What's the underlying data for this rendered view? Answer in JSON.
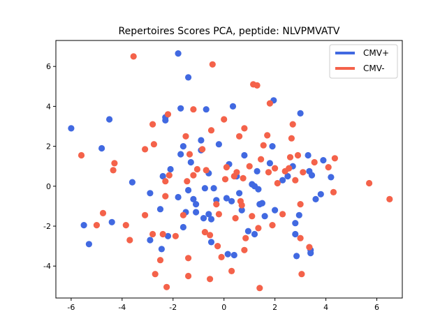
{
  "chart_data": {
    "type": "scatter",
    "title": "Repertoires Scores PCA, peptide: NLVPMVATV",
    "xlabel": "",
    "ylabel": "",
    "xlim": [
      -6.6,
      7.0
    ],
    "ylim": [
      -5.6,
      7.3
    ],
    "xticks": [
      -6,
      -4,
      -2,
      0,
      2,
      4,
      6
    ],
    "yticks": [
      -4,
      -2,
      0,
      2,
      4,
      6
    ],
    "grid": false,
    "legend": "top-right",
    "series": [
      {
        "name": "CMV+",
        "color": "#4169e1",
        "points": [
          [
            -6.0,
            2.9
          ],
          [
            -5.5,
            -1.95
          ],
          [
            -5.3,
            -2.9
          ],
          [
            -4.8,
            1.9
          ],
          [
            -4.5,
            3.35
          ],
          [
            -4.4,
            -1.8
          ],
          [
            -3.6,
            0.2
          ],
          [
            -2.9,
            -2.7
          ],
          [
            -2.9,
            -0.35
          ],
          [
            -2.5,
            -1.15
          ],
          [
            -2.45,
            -3.15
          ],
          [
            -2.4,
            0.5
          ],
          [
            -2.3,
            3.3
          ],
          [
            -2.3,
            3.45
          ],
          [
            -2.2,
            -2.5
          ],
          [
            -2.1,
            0.85
          ],
          [
            -1.8,
            -0.55
          ],
          [
            -1.8,
            6.65
          ],
          [
            -1.7,
            3.9
          ],
          [
            -1.7,
            1.6
          ],
          [
            -1.6,
            2.0
          ],
          [
            -1.6,
            -2.05
          ],
          [
            -1.5,
            -1.3
          ],
          [
            -1.4,
            -0.2
          ],
          [
            -1.4,
            5.45
          ],
          [
            -1.3,
            1.2
          ],
          [
            -1.2,
            -0.65
          ],
          [
            -1.1,
            -0.9
          ],
          [
            -1.1,
            -1.3
          ],
          [
            -0.9,
            2.3
          ],
          [
            -0.9,
            1.8
          ],
          [
            -0.8,
            -1.6
          ],
          [
            -0.75,
            -0.1
          ],
          [
            -0.7,
            3.85
          ],
          [
            -0.6,
            0.65
          ],
          [
            -0.6,
            -1.4
          ],
          [
            -0.5,
            -1.65
          ],
          [
            -0.5,
            -2.8
          ],
          [
            -0.4,
            -0.1
          ],
          [
            -0.3,
            -0.7
          ],
          [
            -0.2,
            2.1
          ],
          [
            0.1,
            -0.6
          ],
          [
            0.15,
            -3.4
          ],
          [
            0.2,
            1.1
          ],
          [
            0.3,
            -0.75
          ],
          [
            0.35,
            4.0
          ],
          [
            0.4,
            -3.45
          ],
          [
            0.5,
            0.5
          ],
          [
            0.6,
            -0.35
          ],
          [
            0.7,
            -1.2
          ],
          [
            0.8,
            1.55
          ],
          [
            0.95,
            -2.25
          ],
          [
            1.1,
            0.1
          ],
          [
            1.2,
            0.0
          ],
          [
            1.2,
            -2.4
          ],
          [
            1.3,
            0.75
          ],
          [
            1.35,
            -0.15
          ],
          [
            1.4,
            -0.9
          ],
          [
            1.5,
            -0.85
          ],
          [
            1.6,
            -1.5
          ],
          [
            1.8,
            1.15
          ],
          [
            1.9,
            2.0
          ],
          [
            1.95,
            4.3
          ],
          [
            2.0,
            -1.2
          ],
          [
            2.3,
            0.3
          ],
          [
            2.5,
            0.5
          ],
          [
            2.7,
            1.0
          ],
          [
            2.8,
            -2.4
          ],
          [
            2.8,
            -1.85
          ],
          [
            2.85,
            -3.5
          ],
          [
            2.95,
            -1.45
          ],
          [
            3.0,
            3.65
          ],
          [
            3.3,
            1.55
          ],
          [
            3.35,
            0.75
          ],
          [
            3.4,
            -3.2
          ],
          [
            3.4,
            -3.35
          ],
          [
            3.45,
            0.55
          ],
          [
            3.6,
            -0.65
          ],
          [
            3.8,
            -0.4
          ],
          [
            3.9,
            1.3
          ],
          [
            4.2,
            0.45
          ]
        ]
      },
      {
        "name": "CMV-",
        "color": "#f4624a",
        "points": [
          [
            -5.6,
            1.55
          ],
          [
            -5.0,
            -1.95
          ],
          [
            -4.75,
            -1.35
          ],
          [
            -4.35,
            0.8
          ],
          [
            -4.3,
            1.15
          ],
          [
            -3.85,
            -1.95
          ],
          [
            -3.7,
            -2.7
          ],
          [
            -3.55,
            6.5
          ],
          [
            -3.1,
            1.85
          ],
          [
            -3.1,
            -1.45
          ],
          [
            -2.8,
            -2.4
          ],
          [
            -2.8,
            3.1
          ],
          [
            -2.75,
            2.1
          ],
          [
            -2.7,
            -4.4
          ],
          [
            -2.5,
            -3.7
          ],
          [
            -2.4,
            -2.4
          ],
          [
            -2.3,
            -0.5
          ],
          [
            -2.3,
            0.25
          ],
          [
            -2.25,
            -5.05
          ],
          [
            -2.2,
            3.6
          ],
          [
            -2.15,
            0.55
          ],
          [
            -1.9,
            -2.5
          ],
          [
            -1.6,
            -1.45
          ],
          [
            -1.5,
            2.5
          ],
          [
            -1.45,
            0.25
          ],
          [
            -1.4,
            -3.6
          ],
          [
            -1.4,
            -4.5
          ],
          [
            -1.35,
            1.6
          ],
          [
            -1.2,
            0.55
          ],
          [
            -1.2,
            3.85
          ],
          [
            -1.05,
            0.85
          ],
          [
            -0.85,
            1.85
          ],
          [
            -0.75,
            -2.3
          ],
          [
            -0.7,
            0.8
          ],
          [
            -0.55,
            -2.45
          ],
          [
            -0.55,
            -4.65
          ],
          [
            -0.5,
            2.8
          ],
          [
            -0.45,
            6.1
          ],
          [
            -0.3,
            -0.9
          ],
          [
            -0.25,
            -3.0
          ],
          [
            -0.2,
            -1.4
          ],
          [
            -0.1,
            -3.55
          ],
          [
            0.0,
            3.35
          ],
          [
            0.05,
            0.35
          ],
          [
            0.1,
            0.95
          ],
          [
            0.3,
            -4.25
          ],
          [
            0.4,
            0.5
          ],
          [
            0.45,
            -1.6
          ],
          [
            0.5,
            0.7
          ],
          [
            0.6,
            2.5
          ],
          [
            0.65,
            -0.75
          ],
          [
            0.7,
            -0.95
          ],
          [
            0.75,
            0.4
          ],
          [
            0.8,
            2.9
          ],
          [
            0.8,
            -3.2
          ],
          [
            0.85,
            -2.6
          ],
          [
            1.0,
            1.0
          ],
          [
            1.1,
            -1.5
          ],
          [
            1.15,
            5.1
          ],
          [
            1.3,
            5.05
          ],
          [
            1.35,
            -2.1
          ],
          [
            1.4,
            -5.1
          ],
          [
            1.45,
            1.35
          ],
          [
            1.55,
            2.05
          ],
          [
            1.7,
            2.55
          ],
          [
            1.75,
            0.7
          ],
          [
            1.8,
            4.15
          ],
          [
            1.9,
            -1.95
          ],
          [
            2.0,
            0.9
          ],
          [
            2.1,
            0.15
          ],
          [
            2.3,
            -1.4
          ],
          [
            2.4,
            0.75
          ],
          [
            2.55,
            0.9
          ],
          [
            2.6,
            1.45
          ],
          [
            2.65,
            2.4
          ],
          [
            2.7,
            3.1
          ],
          [
            2.8,
            0.3
          ],
          [
            2.9,
            1.55
          ],
          [
            3.0,
            -0.9
          ],
          [
            3.0,
            -2.6
          ],
          [
            3.05,
            -4.4
          ],
          [
            3.1,
            0.7
          ],
          [
            3.35,
            -3.05
          ],
          [
            3.55,
            1.2
          ],
          [
            4.1,
            0.95
          ],
          [
            4.3,
            -0.3
          ],
          [
            4.35,
            1.4
          ],
          [
            5.7,
            0.15
          ],
          [
            6.5,
            -0.65
          ]
        ]
      }
    ]
  }
}
